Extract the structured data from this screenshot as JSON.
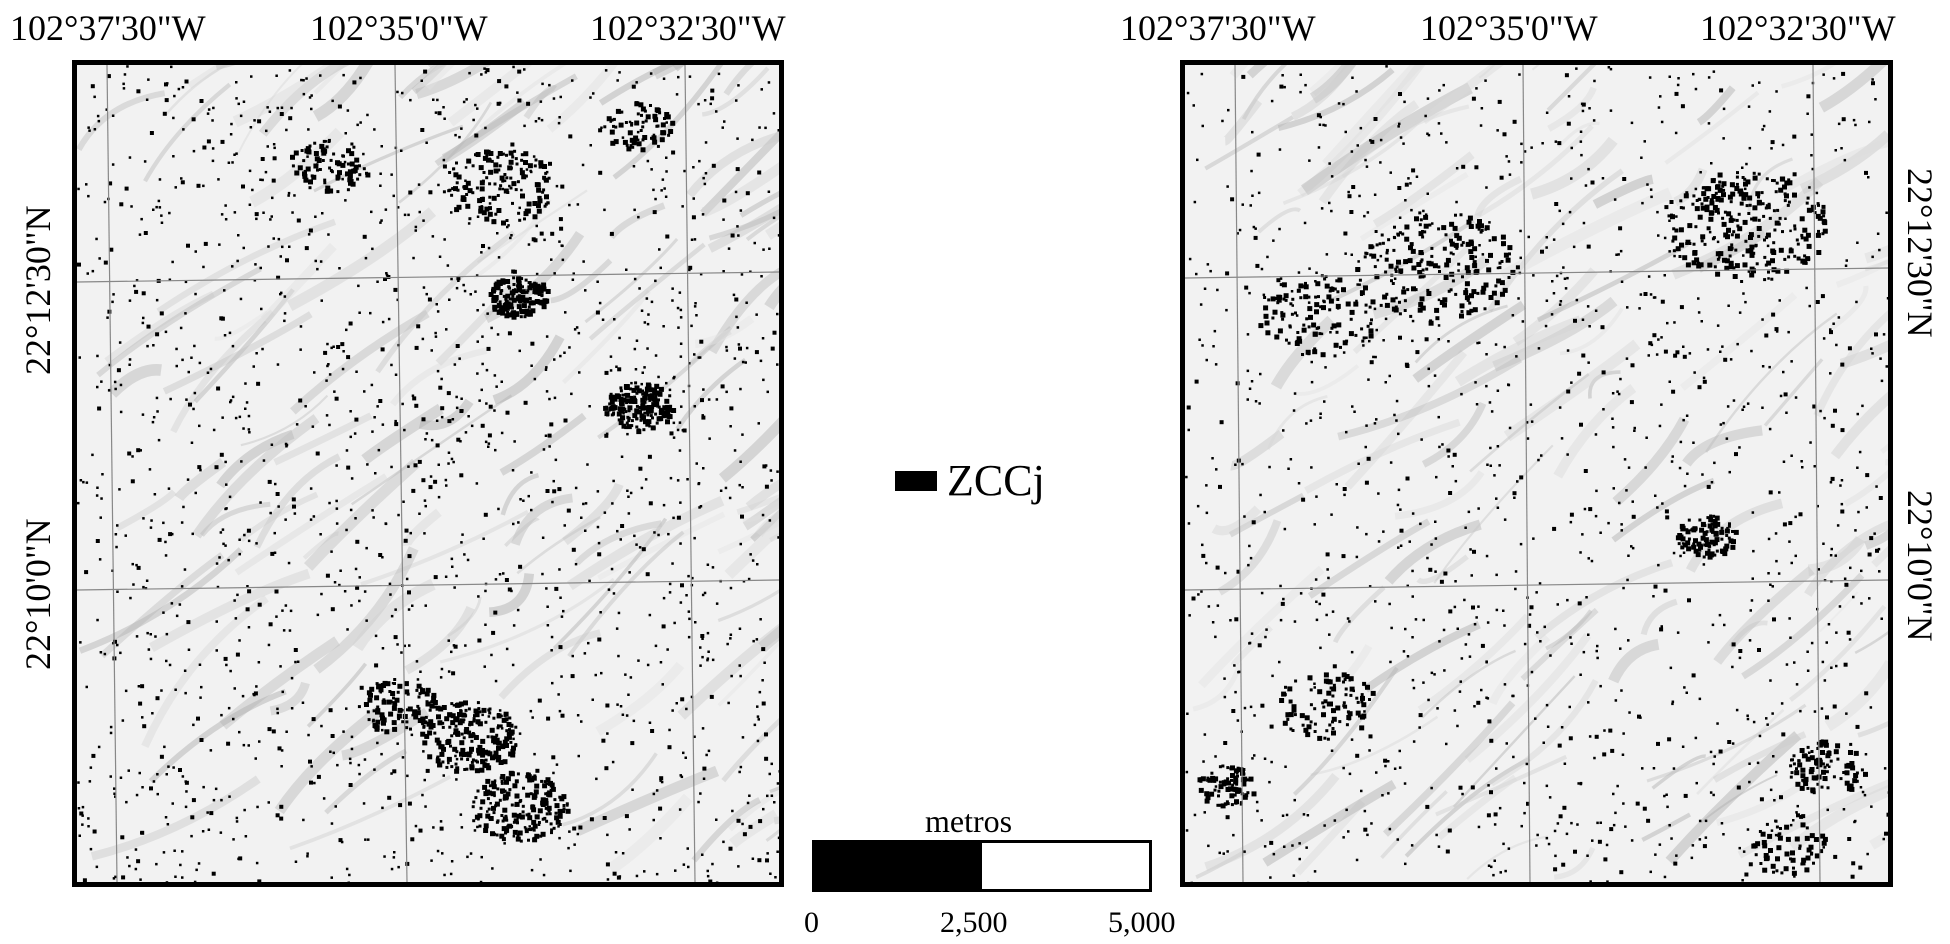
{
  "maps": [
    {
      "id": "left",
      "lon_labels": [
        "102°37'30\"W",
        "102°35'0\"W",
        "102°32'30\"W"
      ],
      "lat_labels": [
        "22°12'30\"N",
        "22°10'0\"N"
      ]
    },
    {
      "id": "right",
      "lon_labels": [
        "102°37'30\"W",
        "102°35'0\"W",
        "102°32'30\"W"
      ],
      "lat_labels": [
        "22°12'30\"N",
        "22°10'0\"N"
      ]
    }
  ],
  "legend": {
    "label": "ZCCj",
    "swatch_color": "#000000"
  },
  "scalebar": {
    "title": "metros",
    "ticks": [
      "0",
      "2,500",
      "5,000"
    ]
  },
  "colors": {
    "background": "#f2f2f2",
    "zone": "#000000",
    "grid": "#888888"
  }
}
